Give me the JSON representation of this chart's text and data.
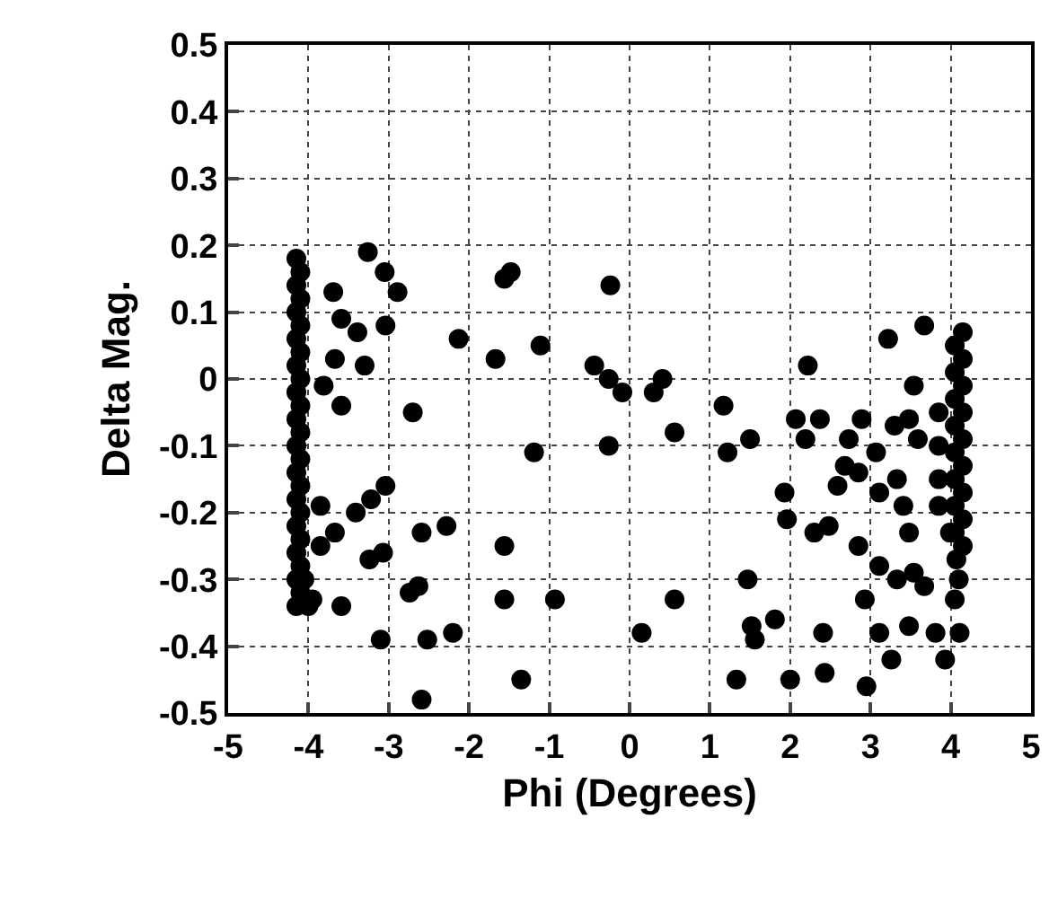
{
  "chart_data": {
    "type": "scatter",
    "xlabel": "Phi (Degrees)",
    "ylabel": "Delta Mag.",
    "xlim": [
      -5,
      5
    ],
    "xticks": [
      -5,
      -4,
      -3,
      -2,
      -1,
      0,
      1,
      2,
      3,
      4,
      5
    ],
    "ylim": [
      -0.5,
      0.5
    ],
    "yticks": [
      -0.5,
      -0.4,
      -0.3,
      -0.2,
      -0.1,
      0,
      0.1,
      0.2,
      0.3,
      0.4,
      0.5
    ],
    "grid": true,
    "marker": "circle",
    "series": [
      {
        "color": "#000000",
        "x": [
          -4.15,
          -4.1,
          -4.15,
          -4.1,
          -4.15,
          -4.1,
          -4.15,
          -4.1,
          -4.15,
          -4.1,
          -4.15,
          -4.1,
          -4.15,
          -4.1,
          -4.15,
          -4.1,
          -4.15,
          -4.1,
          -4.15,
          -4.1,
          -4.15,
          -4.1,
          -4.15,
          -4.1,
          -4.15,
          -4.1,
          -4.15,
          -4.05,
          -4.0,
          -3.95,
          -3.26,
          -3.05,
          -2.89,
          -3.69,
          -3.59,
          -3.39,
          -3.04,
          -3.3,
          -3.67,
          -3.81,
          -3.59,
          -2.7,
          -2.13,
          -1.67,
          -1.48,
          -1.56,
          -1.11,
          -0.24,
          -1.19,
          -0.26,
          -3.04,
          -3.22,
          -3.41,
          -3.85,
          -3.67,
          -3.85,
          -2.59,
          -2.28,
          -3.07,
          -3.24,
          -1.56,
          -2.63,
          -2.74,
          -1.56,
          -0.93,
          -3.59,
          -3.1,
          -2.52,
          -2.2,
          -1.35,
          -2.59,
          -0.44,
          -0.26,
          -0.09,
          0.3,
          0.41,
          0.56,
          1.17,
          1.22,
          1.5,
          2.22,
          2.07,
          2.37,
          2.19,
          3.22,
          3.54,
          2.89,
          2.73,
          3.07,
          2.68,
          2.59,
          2.85,
          3.3,
          3.48,
          3.11,
          3.33,
          3.41,
          3.59,
          1.93,
          1.96,
          2.3,
          2.48,
          2.85,
          3.48,
          3.11,
          3.33,
          3.54,
          3.67,
          2.93,
          1.47,
          0.56,
          0.15,
          1.52,
          1.81,
          1.56,
          2.41,
          3.11,
          3.48,
          3.26,
          3.81,
          4.11,
          3.93,
          1.33,
          2.0,
          2.43,
          2.95,
          3.67,
          4.15,
          4.05,
          4.15,
          4.05,
          4.15,
          4.05,
          4.15,
          4.05,
          4.15,
          4.05,
          4.15,
          4.05,
          4.15,
          4.05,
          4.15,
          4.05,
          4.15,
          3.85,
          3.85,
          3.85,
          3.85,
          3.99,
          4.07,
          4.1,
          4.05
        ],
        "values": [
          0.18,
          0.16,
          0.14,
          0.12,
          0.1,
          0.08,
          0.06,
          0.04,
          0.02,
          0.0,
          -0.02,
          -0.04,
          -0.06,
          -0.08,
          -0.1,
          -0.12,
          -0.14,
          -0.16,
          -0.18,
          -0.2,
          -0.22,
          -0.24,
          -0.26,
          -0.28,
          -0.3,
          -0.32,
          -0.34,
          -0.3,
          -0.34,
          -0.33,
          0.19,
          0.16,
          0.13,
          0.13,
          0.09,
          0.07,
          0.08,
          0.02,
          0.03,
          -0.01,
          -0.04,
          -0.05,
          0.06,
          0.03,
          0.16,
          0.15,
          0.05,
          0.14,
          -0.11,
          -0.1,
          -0.16,
          -0.18,
          -0.2,
          -0.19,
          -0.23,
          -0.25,
          -0.23,
          -0.22,
          -0.26,
          -0.27,
          -0.25,
          -0.31,
          -0.32,
          -0.33,
          -0.33,
          -0.34,
          -0.39,
          -0.39,
          -0.38,
          -0.45,
          -0.48,
          0.02,
          0.0,
          -0.02,
          -0.02,
          0.0,
          -0.08,
          -0.04,
          -0.11,
          -0.09,
          0.02,
          -0.06,
          -0.06,
          -0.09,
          0.06,
          -0.01,
          -0.06,
          -0.09,
          -0.11,
          -0.13,
          -0.16,
          -0.14,
          -0.07,
          -0.06,
          -0.17,
          -0.15,
          -0.19,
          -0.09,
          -0.17,
          -0.21,
          -0.23,
          -0.22,
          -0.25,
          -0.23,
          -0.28,
          -0.3,
          -0.29,
          -0.31,
          -0.33,
          -0.3,
          -0.33,
          -0.38,
          -0.37,
          -0.36,
          -0.39,
          -0.38,
          -0.38,
          -0.37,
          -0.42,
          -0.38,
          -0.38,
          -0.42,
          -0.45,
          -0.45,
          -0.44,
          -0.46,
          0.08,
          0.07,
          0.05,
          0.03,
          0.01,
          -0.01,
          -0.03,
          -0.05,
          -0.07,
          -0.09,
          -0.11,
          -0.13,
          -0.15,
          -0.17,
          -0.19,
          -0.21,
          -0.23,
          -0.25,
          -0.05,
          -0.1,
          -0.15,
          -0.19,
          -0.23,
          -0.27,
          -0.3,
          -0.33
        ]
      }
    ]
  }
}
